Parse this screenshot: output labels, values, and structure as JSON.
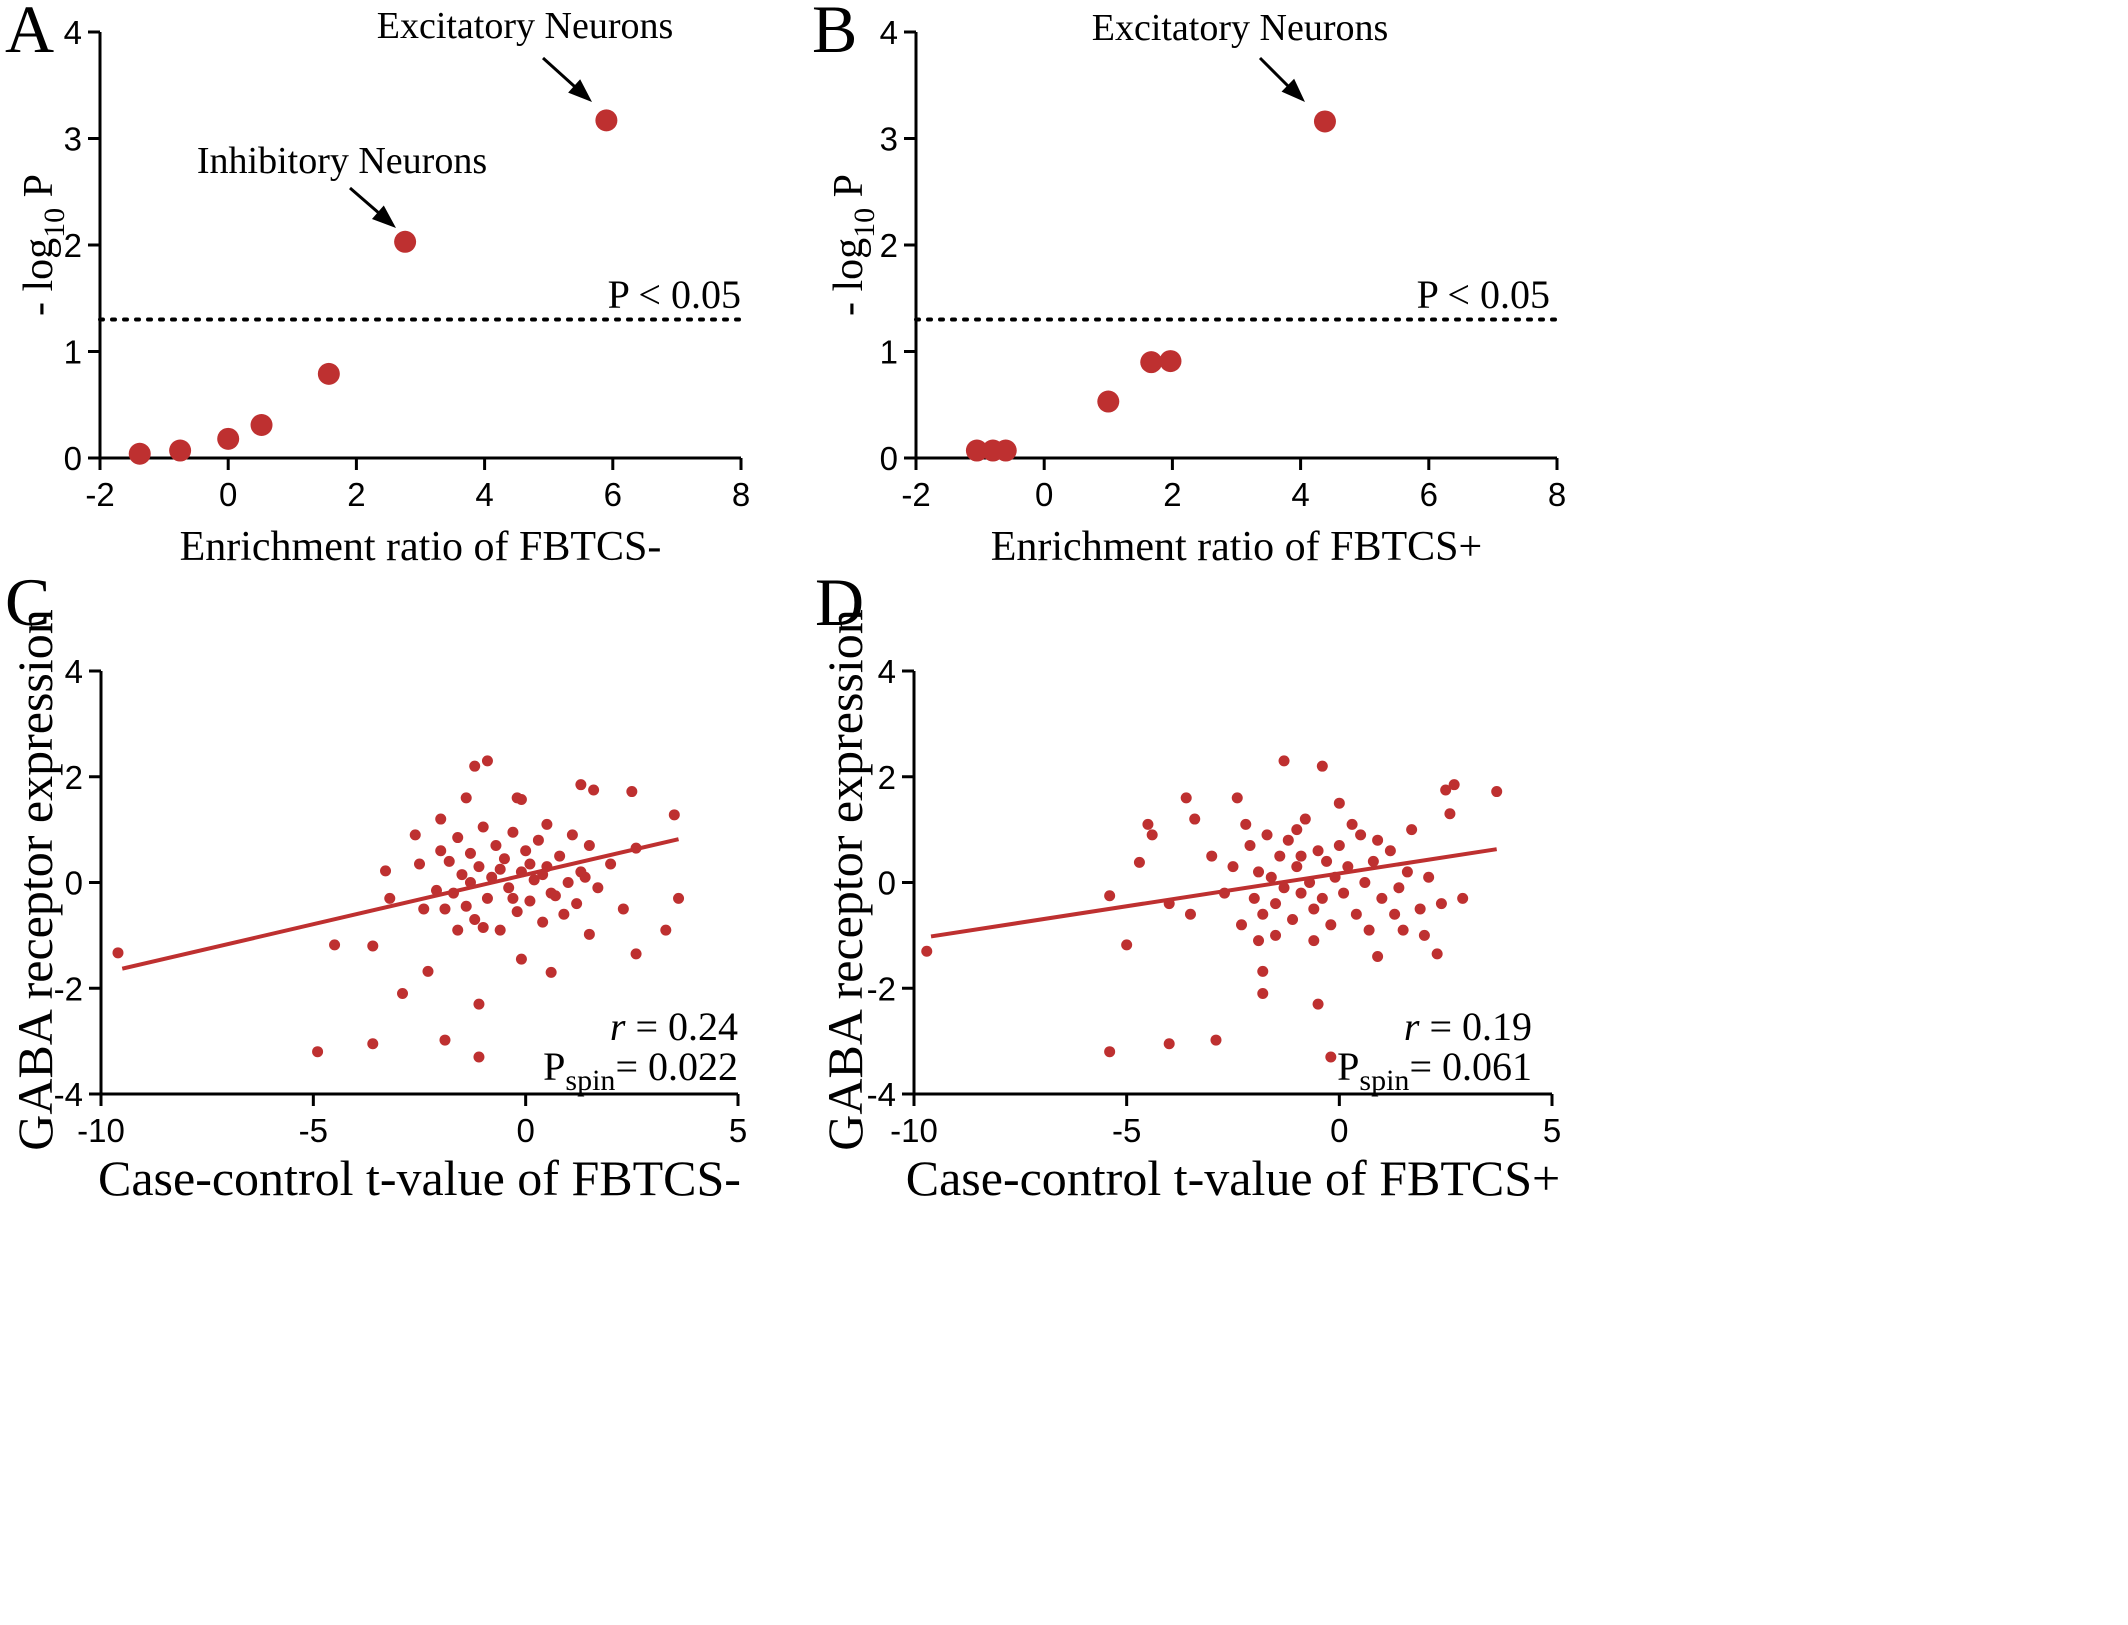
{
  "colors": {
    "point": "#be3030",
    "line": "#be3030",
    "axis": "#000000"
  },
  "panels": [
    {
      "letter": "A",
      "xlabel": "Enrichment ratio of FBTCS-",
      "ylabel_pre": "- log",
      "ylabel_sub": "10",
      "ylabel_post": " P",
      "threshold_label": "P < 0.05",
      "annotations": [
        {
          "text": "Excitatory Neurons"
        },
        {
          "text": "Inhibitory Neurons"
        }
      ]
    },
    {
      "letter": "B",
      "xlabel": "Enrichment ratio of FBTCS+",
      "ylabel_pre": "- log",
      "ylabel_sub": "10",
      "ylabel_post": " P",
      "threshold_label": "P < 0.05",
      "annotations": [
        {
          "text": "Excitatory Neurons"
        }
      ]
    },
    {
      "letter": "C",
      "xlabel": "Case-control t-value of FBTCS-",
      "ylabel": "GABA receptor expression",
      "r_label": "r",
      "r_value": " = 0.24",
      "p_label": "P",
      "p_sub": "spin",
      "p_value": "= 0.022"
    },
    {
      "letter": "D",
      "xlabel": "Case-control t-value of FBTCS+",
      "ylabel": "GABA receptor expression",
      "r_label": "r",
      "r_value": " = 0.19",
      "p_label": "P",
      "p_sub": "spin",
      "p_value": "= 0.061"
    }
  ],
  "chart_data": [
    {
      "type": "scatter",
      "xlabel": "Enrichment ratio of FBTCS-",
      "ylabel": "- log10 P",
      "xlim": [
        -2,
        8
      ],
      "ylim": [
        0,
        4
      ],
      "xticks": [
        -2,
        0,
        2,
        4,
        6,
        8
      ],
      "yticks": [
        0,
        1,
        2,
        3,
        4
      ],
      "threshold_y": 1.3,
      "points": [
        {
          "x": -1.38,
          "y": 0.04
        },
        {
          "x": -0.75,
          "y": 0.07
        },
        {
          "x": 0.0,
          "y": 0.18
        },
        {
          "x": 0.52,
          "y": 0.31
        },
        {
          "x": 1.57,
          "y": 0.79
        },
        {
          "x": 2.76,
          "y": 2.03
        },
        {
          "x": 5.9,
          "y": 3.17
        }
      ],
      "annotations": [
        {
          "text": "Excitatory Neurons",
          "x": 5.9,
          "y": 3.17
        },
        {
          "text": "Inhibitory Neurons",
          "x": 2.76,
          "y": 2.03
        }
      ]
    },
    {
      "type": "scatter",
      "xlabel": "Enrichment ratio of FBTCS+",
      "ylabel": "- log10 P",
      "xlim": [
        -2,
        8
      ],
      "ylim": [
        0,
        4
      ],
      "xticks": [
        -2,
        0,
        2,
        4,
        6,
        8
      ],
      "yticks": [
        0,
        1,
        2,
        3,
        4
      ],
      "threshold_y": 1.3,
      "points": [
        {
          "x": -1.05,
          "y": 0.07
        },
        {
          "x": -0.8,
          "y": 0.07
        },
        {
          "x": -0.6,
          "y": 0.07
        },
        {
          "x": 1.0,
          "y": 0.53
        },
        {
          "x": 1.67,
          "y": 0.9
        },
        {
          "x": 1.97,
          "y": 0.91
        },
        {
          "x": 4.38,
          "y": 3.16
        }
      ],
      "annotations": [
        {
          "text": "Excitatory Neurons",
          "x": 4.38,
          "y": 3.16
        }
      ]
    },
    {
      "type": "scatter",
      "xlabel": "Case-control t-value of FBTCS-",
      "ylabel": "GABA receptor expression",
      "xlim": [
        -10,
        5
      ],
      "ylim": [
        -4,
        4
      ],
      "xticks": [
        -10,
        -5,
        0,
        5
      ],
      "yticks": [
        -4,
        -2,
        0,
        2,
        4
      ],
      "regression": {
        "x1": -9.5,
        "y1": -1.63,
        "x2": 3.6,
        "y2": 0.82
      },
      "r": 0.24,
      "p_spin": 0.022,
      "points": [
        {
          "x": -9.6,
          "y": -1.33
        },
        {
          "x": -4.9,
          "y": -3.2
        },
        {
          "x": -4.5,
          "y": -1.18
        },
        {
          "x": -3.6,
          "y": -1.2
        },
        {
          "x": -3.6,
          "y": -3.05
        },
        {
          "x": -3.3,
          "y": 0.22
        },
        {
          "x": -3.2,
          "y": -0.3
        },
        {
          "x": -2.9,
          "y": -2.1
        },
        {
          "x": -2.6,
          "y": 0.9
        },
        {
          "x": -2.3,
          "y": -1.68
        },
        {
          "x": -1.9,
          "y": -2.98
        },
        {
          "x": -2.0,
          "y": 1.2
        },
        {
          "x": -1.1,
          "y": -3.3
        },
        {
          "x": -1.1,
          "y": -2.3
        },
        {
          "x": -1.2,
          "y": 2.2
        },
        {
          "x": -0.9,
          "y": 2.3
        },
        {
          "x": -1.4,
          "y": 1.6
        },
        {
          "x": -0.2,
          "y": 1.6
        },
        {
          "x": -0.1,
          "y": 1.57
        },
        {
          "x": 0.5,
          "y": 1.1
        },
        {
          "x": 1.3,
          "y": 1.85
        },
        {
          "x": 1.6,
          "y": 1.75
        },
        {
          "x": 2.5,
          "y": 1.72
        },
        {
          "x": 3.5,
          "y": 1.28
        },
        {
          "x": 3.6,
          "y": -0.3
        },
        {
          "x": 3.3,
          "y": -0.9
        },
        {
          "x": 2.6,
          "y": -1.35
        },
        {
          "x": 1.5,
          "y": -0.98
        },
        {
          "x": 0.6,
          "y": -1.7
        },
        {
          "x": -0.1,
          "y": -1.45
        },
        {
          "x": -2.5,
          "y": 0.35
        },
        {
          "x": -2.4,
          "y": -0.5
        },
        {
          "x": -2.1,
          "y": -0.15
        },
        {
          "x": -2.0,
          "y": 0.6
        },
        {
          "x": -1.8,
          "y": 0.4
        },
        {
          "x": -1.7,
          "y": -0.2
        },
        {
          "x": -1.6,
          "y": 0.85
        },
        {
          "x": -1.5,
          "y": 0.15
        },
        {
          "x": -1.4,
          "y": -0.45
        },
        {
          "x": -1.3,
          "y": 0.55
        },
        {
          "x": -1.2,
          "y": -0.7
        },
        {
          "x": -1.1,
          "y": 0.3
        },
        {
          "x": -1.0,
          "y": 1.05
        },
        {
          "x": -0.9,
          "y": -0.3
        },
        {
          "x": -0.8,
          "y": 0.1
        },
        {
          "x": -0.7,
          "y": 0.7
        },
        {
          "x": -0.6,
          "y": -0.9
        },
        {
          "x": -0.5,
          "y": 0.45
        },
        {
          "x": -0.4,
          "y": -0.1
        },
        {
          "x": -0.3,
          "y": 0.95
        },
        {
          "x": -0.2,
          "y": -0.55
        },
        {
          "x": -0.1,
          "y": 0.2
        },
        {
          "x": 0.0,
          "y": 0.6
        },
        {
          "x": 0.1,
          "y": -0.35
        },
        {
          "x": 0.2,
          "y": 0.05
        },
        {
          "x": 0.3,
          "y": 0.8
        },
        {
          "x": 0.4,
          "y": -0.75
        },
        {
          "x": 0.5,
          "y": 0.3
        },
        {
          "x": 0.6,
          "y": -0.2
        },
        {
          "x": 0.8,
          "y": 0.5
        },
        {
          "x": 0.9,
          "y": -0.6
        },
        {
          "x": 1.0,
          "y": 0.0
        },
        {
          "x": 1.1,
          "y": 0.9
        },
        {
          "x": 1.2,
          "y": -0.4
        },
        {
          "x": 1.3,
          "y": 0.2
        },
        {
          "x": 1.5,
          "y": 0.7
        },
        {
          "x": 1.7,
          "y": -0.1
        },
        {
          "x": 2.0,
          "y": 0.35
        },
        {
          "x": 2.3,
          "y": -0.5
        },
        {
          "x": 2.6,
          "y": 0.65
        },
        {
          "x": -1.9,
          "y": -0.5
        },
        {
          "x": -1.6,
          "y": -0.9
        },
        {
          "x": -1.3,
          "y": 0.0
        },
        {
          "x": -1.0,
          "y": -0.85
        },
        {
          "x": -0.6,
          "y": 0.25
        },
        {
          "x": -0.3,
          "y": -0.3
        },
        {
          "x": 0.1,
          "y": 0.35
        },
        {
          "x": 0.4,
          "y": 0.15
        },
        {
          "x": 0.7,
          "y": -0.25
        },
        {
          "x": 1.4,
          "y": 0.1
        }
      ]
    },
    {
      "type": "scatter",
      "xlabel": "Case-control t-value of FBTCS+",
      "ylabel": "GABA receptor expression",
      "xlim": [
        -10,
        5
      ],
      "ylim": [
        -4,
        4
      ],
      "xticks": [
        -10,
        -5,
        0,
        5
      ],
      "yticks": [
        -4,
        -2,
        0,
        2,
        4
      ],
      "regression": {
        "x1": -9.6,
        "y1": -1.02,
        "x2": 3.7,
        "y2": 0.63
      },
      "r": 0.19,
      "p_spin": 0.061,
      "points": [
        {
          "x": -9.7,
          "y": -1.3
        },
        {
          "x": -5.4,
          "y": -0.25
        },
        {
          "x": -5.4,
          "y": -3.2
        },
        {
          "x": -5.0,
          "y": -1.18
        },
        {
          "x": -4.7,
          "y": 0.38
        },
        {
          "x": -4.5,
          "y": 1.1
        },
        {
          "x": -4.4,
          "y": 0.9
        },
        {
          "x": -4.0,
          "y": -3.05
        },
        {
          "x": -4.0,
          "y": -0.4
        },
        {
          "x": -3.6,
          "y": 1.6
        },
        {
          "x": -3.4,
          "y": 1.2
        },
        {
          "x": -2.9,
          "y": -2.98
        },
        {
          "x": -2.4,
          "y": 1.6
        },
        {
          "x": -1.8,
          "y": -2.1
        },
        {
          "x": -1.8,
          "y": -1.68
        },
        {
          "x": -1.3,
          "y": 2.3
        },
        {
          "x": -0.5,
          "y": -2.3
        },
        {
          "x": -0.4,
          "y": 2.2
        },
        {
          "x": -0.2,
          "y": -3.3
        },
        {
          "x": 0.0,
          "y": 1.5
        },
        {
          "x": 0.9,
          "y": -1.4
        },
        {
          "x": 1.5,
          "y": -0.9
        },
        {
          "x": 2.0,
          "y": -1.0
        },
        {
          "x": 2.3,
          "y": -1.35
        },
        {
          "x": 2.5,
          "y": 1.75
        },
        {
          "x": 2.7,
          "y": 1.85
        },
        {
          "x": 2.9,
          "y": -0.3
        },
        {
          "x": 3.7,
          "y": 1.72
        },
        {
          "x": 2.6,
          "y": 1.3
        },
        {
          "x": 1.7,
          "y": 1.0
        },
        {
          "x": -3.5,
          "y": -0.6
        },
        {
          "x": -3.0,
          "y": 0.5
        },
        {
          "x": -2.7,
          "y": -0.2
        },
        {
          "x": -2.5,
          "y": 0.3
        },
        {
          "x": -2.3,
          "y": -0.8
        },
        {
          "x": -2.1,
          "y": 0.7
        },
        {
          "x": -2.0,
          "y": -0.3
        },
        {
          "x": -1.9,
          "y": 0.2
        },
        {
          "x": -1.8,
          "y": -0.6
        },
        {
          "x": -1.7,
          "y": 0.9
        },
        {
          "x": -1.6,
          "y": 0.1
        },
        {
          "x": -1.5,
          "y": -0.4
        },
        {
          "x": -1.4,
          "y": 0.5
        },
        {
          "x": -1.3,
          "y": -0.1
        },
        {
          "x": -1.2,
          "y": 0.8
        },
        {
          "x": -1.1,
          "y": -0.7
        },
        {
          "x": -1.0,
          "y": 0.3
        },
        {
          "x": -0.9,
          "y": -0.2
        },
        {
          "x": -0.8,
          "y": 1.2
        },
        {
          "x": -0.7,
          "y": 0.0
        },
        {
          "x": -0.6,
          "y": -0.5
        },
        {
          "x": -0.5,
          "y": 0.6
        },
        {
          "x": -0.4,
          "y": -0.3
        },
        {
          "x": -0.3,
          "y": 0.4
        },
        {
          "x": -0.2,
          "y": -0.8
        },
        {
          "x": -0.1,
          "y": 0.1
        },
        {
          "x": 0.0,
          "y": 0.7
        },
        {
          "x": 0.1,
          "y": -0.2
        },
        {
          "x": 0.2,
          "y": 0.3
        },
        {
          "x": 0.4,
          "y": -0.6
        },
        {
          "x": 0.5,
          "y": 0.9
        },
        {
          "x": 0.6,
          "y": 0.0
        },
        {
          "x": 0.8,
          "y": 0.4
        },
        {
          "x": 1.0,
          "y": -0.3
        },
        {
          "x": 1.2,
          "y": 0.6
        },
        {
          "x": 1.4,
          "y": -0.1
        },
        {
          "x": 1.6,
          "y": 0.2
        },
        {
          "x": 1.9,
          "y": -0.5
        },
        {
          "x": 2.1,
          "y": 0.1
        },
        {
          "x": 2.4,
          "y": -0.4
        },
        {
          "x": -1.5,
          "y": -1.0
        },
        {
          "x": -1.0,
          "y": 1.0
        },
        {
          "x": -0.6,
          "y": -1.1
        },
        {
          "x": 0.3,
          "y": 1.1
        },
        {
          "x": 0.7,
          "y": -0.9
        },
        {
          "x": -2.2,
          "y": 1.1
        },
        {
          "x": -0.9,
          "y": 0.5
        },
        {
          "x": 0.9,
          "y": 0.8
        },
        {
          "x": 1.3,
          "y": -0.6
        },
        {
          "x": -1.9,
          "y": -1.1
        }
      ]
    }
  ]
}
